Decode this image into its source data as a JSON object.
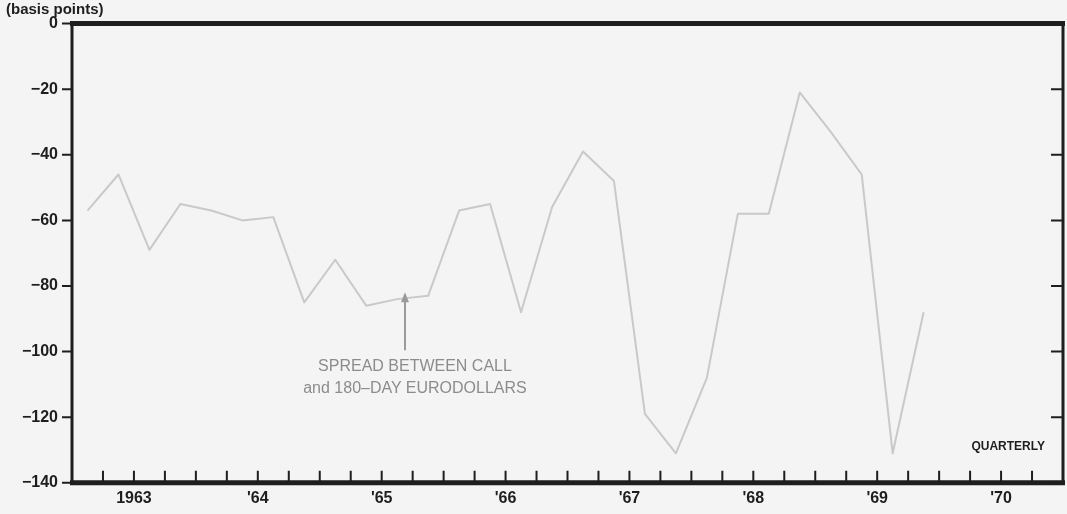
{
  "chart_data": {
    "type": "line",
    "ylabel": "(basis points)",
    "x": [
      1962.625,
      1962.875,
      1963.125,
      1963.375,
      1963.625,
      1963.875,
      1964.125,
      1964.375,
      1964.625,
      1964.875,
      1965.125,
      1965.375,
      1965.625,
      1965.875,
      1966.125,
      1966.375,
      1966.625,
      1966.875,
      1967.125,
      1967.375,
      1967.625,
      1967.875,
      1968.125,
      1968.375,
      1968.625,
      1968.875,
      1969.125,
      1969.375
    ],
    "series": [
      {
        "color": "#c9c9c9",
        "values": [
          -57,
          -46,
          -69,
          -55,
          -57,
          -60,
          -59,
          -85,
          -72,
          -86,
          -84,
          -83,
          -57,
          -55,
          -88,
          -56,
          -39,
          -48,
          -119,
          -131,
          -108,
          -58,
          -58,
          -21,
          -33,
          -46,
          -131,
          -88
        ]
      }
    ],
    "xlim": [
      1962.5,
      1970.5
    ],
    "xticks": [
      {
        "value": 1962.75,
        "label": null
      },
      {
        "value": 1963,
        "label": "1963"
      },
      {
        "value": 1963.25,
        "label": null
      },
      {
        "value": 1963.5,
        "label": null
      },
      {
        "value": 1963.75,
        "label": null
      },
      {
        "value": 1964,
        "label": "'64"
      },
      {
        "value": 1964.25,
        "label": null
      },
      {
        "value": 1964.5,
        "label": null
      },
      {
        "value": 1964.75,
        "label": null
      },
      {
        "value": 1965,
        "label": "'65"
      },
      {
        "value": 1965.25,
        "label": null
      },
      {
        "value": 1965.5,
        "label": null
      },
      {
        "value": 1965.75,
        "label": null
      },
      {
        "value": 1966,
        "label": "'66"
      },
      {
        "value": 1966.25,
        "label": null
      },
      {
        "value": 1966.5,
        "label": null
      },
      {
        "value": 1966.75,
        "label": null
      },
      {
        "value": 1967,
        "label": "'67"
      },
      {
        "value": 1967.25,
        "label": null
      },
      {
        "value": 1967.5,
        "label": null
      },
      {
        "value": 1967.75,
        "label": null
      },
      {
        "value": 1968,
        "label": "'68"
      },
      {
        "value": 1968.25,
        "label": null
      },
      {
        "value": 1968.5,
        "label": null
      },
      {
        "value": 1968.75,
        "label": null
      },
      {
        "value": 1969,
        "label": "'69"
      },
      {
        "value": 1969.25,
        "label": null
      },
      {
        "value": 1969.5,
        "label": null
      },
      {
        "value": 1969.75,
        "label": null
      },
      {
        "value": 1970,
        "label": "'70"
      },
      {
        "value": 1970.25,
        "label": null
      }
    ],
    "ylim": [
      -140,
      0
    ],
    "yticks": [
      -140,
      -120,
      -100,
      -80,
      -60,
      -40,
      -20,
      0
    ],
    "grid": false,
    "legend": false,
    "marker": "none",
    "line_style": "solid",
    "annotations": [
      "SPREAD BETWEEN CALL\nand 180–DAY EURODOLLARS",
      "QUARTERLY"
    ]
  }
}
